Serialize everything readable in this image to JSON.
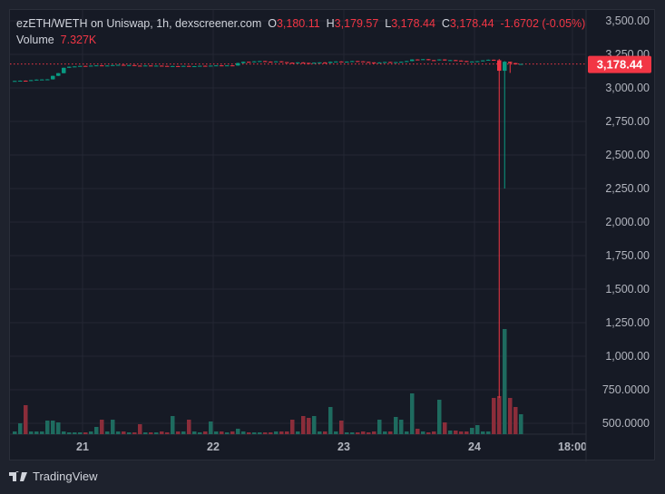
{
  "header": {
    "title": "ezETH/WETH on Uniswap, 1h, dexscreener.com",
    "o_label": "O",
    "o": "3,180.11",
    "h_label": "H",
    "h": "3,179.57",
    "l_label": "L",
    "l": "3,178.44",
    "c_label": "C",
    "c": "3,178.44",
    "change": "-1.6702 (-0.05%)",
    "volume_label": "Volume",
    "volume": "7.327K"
  },
  "footer": {
    "brand": "TradingView"
  },
  "colors": {
    "up": "#089981",
    "down": "#f23645",
    "vol_up": "#1e6b5f",
    "vol_down": "#8b2d3a",
    "grid": "#242733",
    "bg": "#161a25",
    "text": "#b2b5be"
  },
  "chart_data": {
    "type": "candlestick",
    "interval": "1h",
    "ylim": [
      430,
      3560
    ],
    "y_ticks": [
      "3,500.00",
      "3,250.00",
      "3,000.00",
      "2,750.00",
      "2,500.00",
      "2,250.00",
      "2,000.00",
      "1,750.00",
      "1,500.00",
      "1,250.00",
      "1,000.00",
      "750.0000",
      "500.0000"
    ],
    "y_tick_values": [
      3500,
      3250,
      3000,
      2750,
      2500,
      2250,
      2000,
      1750,
      1500,
      1250,
      1000,
      750,
      500
    ],
    "x_ticks": [
      "21",
      "22",
      "23",
      "24",
      "18:00"
    ],
    "x_tick_hours": [
      13,
      37,
      61,
      85,
      103
    ],
    "last_price": "3,178.44",
    "last_price_value": 3178.44,
    "first_open": 3050,
    "closes": [
      3052,
      3054,
      3053,
      3058,
      3062,
      3063,
      3064,
      3090,
      3110,
      3150,
      3158,
      3160,
      3164,
      3163,
      3166,
      3168,
      3165,
      3167,
      3170,
      3172,
      3168,
      3170,
      3166,
      3164,
      3167,
      3165,
      3166,
      3164,
      3160,
      3163,
      3161,
      3164,
      3160,
      3162,
      3165,
      3163,
      3166,
      3168,
      3166,
      3168,
      3167,
      3185,
      3195,
      3192,
      3198,
      3200,
      3196,
      3194,
      3198,
      3192,
      3188,
      3185,
      3190,
      3186,
      3183,
      3188,
      3190,
      3186,
      3195,
      3197,
      3194,
      3196,
      3200,
      3198,
      3194,
      3190,
      3186,
      3190,
      3193,
      3189,
      3192,
      3195,
      3200,
      3212,
      3210,
      3214,
      3207,
      3206,
      3212,
      3205,
      3207,
      3204,
      3200,
      3195,
      3197,
      3199,
      3205,
      3210,
      3206,
      3128,
      3195,
      3185,
      3176,
      3178.44
    ],
    "extremes": [
      {
        "i": 89,
        "high": 3215,
        "low": 689
      },
      {
        "i": 90,
        "high": 3200,
        "low": 2250
      },
      {
        "i": 91,
        "high": 3196,
        "low": 3112
      },
      {
        "i": 41,
        "high": 3188,
        "low": 3165
      }
    ],
    "volumes": [
      3,
      12,
      32,
      3,
      3,
      3,
      15,
      15,
      13,
      3,
      2,
      2,
      2,
      2,
      3,
      8,
      16,
      3,
      16,
      3,
      3,
      2,
      2,
      11,
      2,
      2,
      2,
      3,
      2,
      20,
      3,
      3,
      16,
      3,
      2,
      3,
      14,
      3,
      3,
      2,
      3,
      6,
      3,
      2,
      2,
      2,
      2,
      2,
      3,
      3,
      3,
      16,
      3,
      20,
      18,
      20,
      3,
      3,
      30,
      3,
      15,
      2,
      2,
      2,
      3,
      2,
      3,
      16,
      3,
      3,
      19,
      16,
      3,
      45,
      6,
      3,
      2,
      3,
      38,
      13,
      4,
      4,
      3,
      3,
      7,
      10,
      3,
      3,
      40,
      42,
      116,
      40,
      30,
      22
    ]
  }
}
